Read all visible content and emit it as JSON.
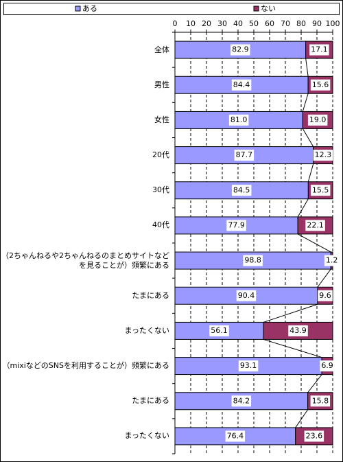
{
  "chart_data": {
    "type": "stacked-bar-horizontal",
    "categories": [
      "全体",
      "男性",
      "女性",
      "20代",
      "30代",
      "40代",
      "（2ちゃんねるや2ちゃんねるのまとめサイトなど\nを見ることが）頻繁にある",
      "たまにある",
      "まったくない",
      "（mixiなどのSNSを利用することが）頻繁にある",
      "たまにある",
      "まったくない"
    ],
    "series": [
      {
        "name": "ある",
        "color": "#9999ff",
        "values": [
          82.9,
          84.4,
          81.0,
          87.7,
          84.5,
          77.9,
          98.8,
          90.4,
          56.1,
          93.1,
          84.2,
          76.4
        ],
        "value_labels": [
          "82.9",
          "84.4",
          "81.0",
          "87.7",
          "84.5",
          "77.9",
          "98.8",
          "90.4",
          "56.1",
          "93.1",
          "84.2",
          "76.4"
        ]
      },
      {
        "name": "ない",
        "color": "#993366",
        "values": [
          17.1,
          15.6,
          19.0,
          12.3,
          15.5,
          22.1,
          1.2,
          9.6,
          43.9,
          6.9,
          15.8,
          23.6
        ],
        "value_labels": [
          "17.1",
          "15.6",
          "19.0",
          "12.3",
          "15.5",
          "22.1",
          "1.2",
          "9.6",
          "43.9",
          "6.9",
          "15.8",
          "23.6"
        ]
      }
    ],
    "xlim": [
      0,
      100
    ],
    "xticks": [
      0,
      10,
      20,
      30,
      40,
      50,
      60,
      70,
      80,
      90,
      100
    ],
    "grid": true,
    "legend": "top"
  }
}
